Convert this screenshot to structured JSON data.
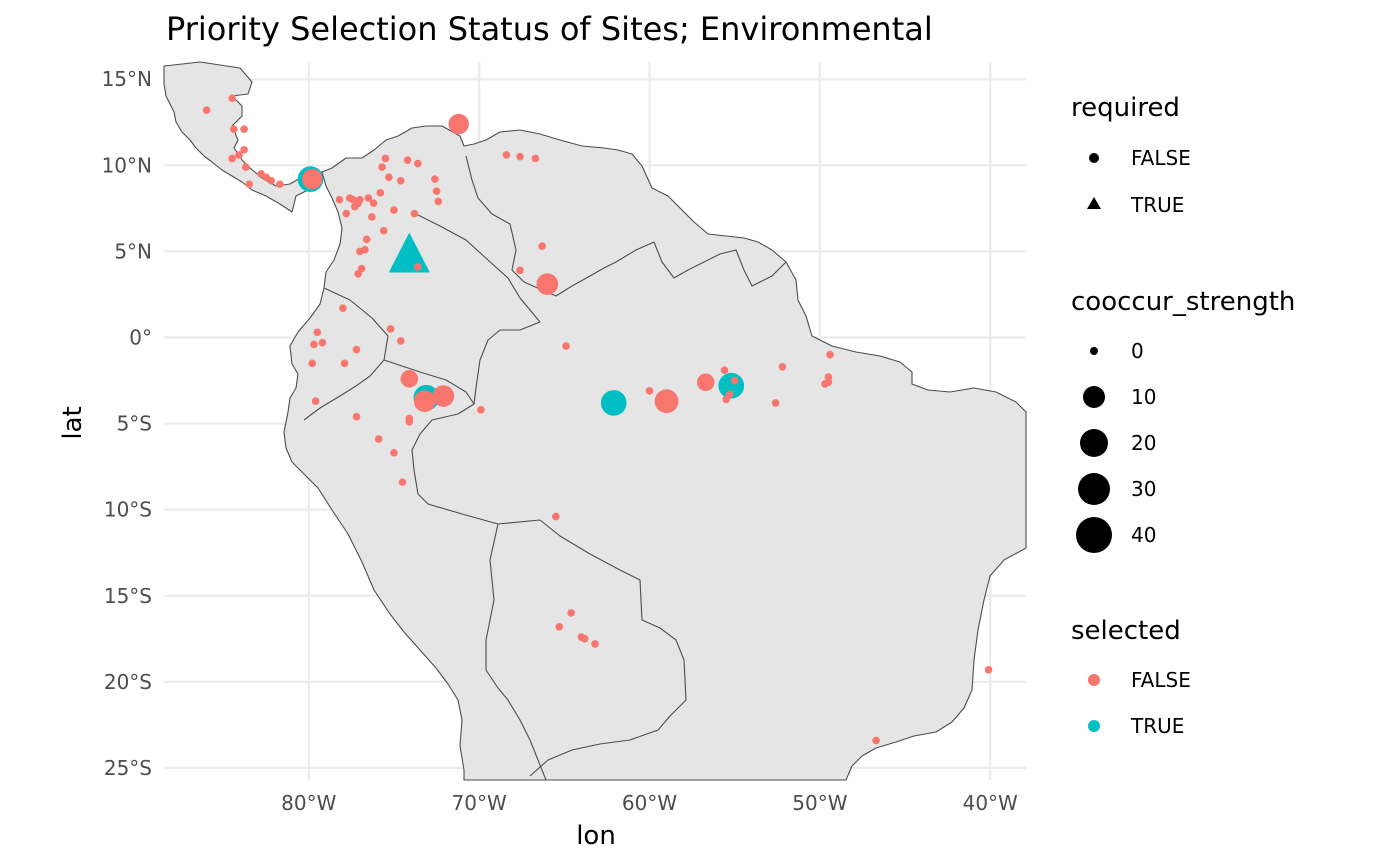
{
  "chart_data": {
    "type": "scatter",
    "title": "Priority Selection Status of Sites; Environmental",
    "xlabel": "lon",
    "ylabel": "lat",
    "xlim": [
      -88.5,
      -37.9
    ],
    "ylim": [
      -25.7,
      16.0
    ],
    "x_ticks": [
      {
        "value": -80,
        "label": "80°W"
      },
      {
        "value": -70,
        "label": "70°W"
      },
      {
        "value": -60,
        "label": "60°W"
      },
      {
        "value": -50,
        "label": "50°W"
      },
      {
        "value": -40,
        "label": "40°W"
      }
    ],
    "y_ticks": [
      {
        "value": 15,
        "label": "15°N"
      },
      {
        "value": 10,
        "label": "10°N"
      },
      {
        "value": 5,
        "label": "5°N"
      },
      {
        "value": 0,
        "label": "0°"
      },
      {
        "value": -5,
        "label": "5°S"
      },
      {
        "value": -10,
        "label": "10°S"
      },
      {
        "value": -15,
        "label": "15°S"
      },
      {
        "value": -20,
        "label": "20°S"
      },
      {
        "value": -25,
        "label": "25°S"
      }
    ],
    "grid": true,
    "basemap": "country boundaries, light grey fill",
    "colors": {
      "selected_false": "#F8766D",
      "selected_true": "#00BFC4"
    },
    "legends": {
      "placement": "right",
      "required": {
        "title": "required",
        "entries": [
          {
            "label": "FALSE",
            "shape": "circle"
          },
          {
            "label": "TRUE",
            "shape": "triangle"
          }
        ]
      },
      "cooccur_strength": {
        "title": "cooccur_strength",
        "entries": [
          {
            "label": "0",
            "value": 0
          },
          {
            "label": "10",
            "value": 10
          },
          {
            "label": "20",
            "value": 20
          },
          {
            "label": "30",
            "value": 30
          },
          {
            "label": "40",
            "value": 40
          }
        ]
      },
      "selected": {
        "title": "selected",
        "entries": [
          {
            "label": "FALSE",
            "color": "#F8766D"
          },
          {
            "label": "TRUE",
            "color": "#00BFC4"
          }
        ]
      }
    },
    "points": [
      {
        "lon": -86.0,
        "lat": 13.2,
        "cooccur_strength": 0,
        "selected": false,
        "required": false
      },
      {
        "lon": -84.5,
        "lat": 13.9,
        "cooccur_strength": 0,
        "selected": false,
        "required": false
      },
      {
        "lon": -84.4,
        "lat": 12.1,
        "cooccur_strength": 0,
        "selected": false,
        "required": false
      },
      {
        "lon": -83.8,
        "lat": 12.1,
        "cooccur_strength": 0,
        "selected": false,
        "required": false
      },
      {
        "lon": -84.5,
        "lat": 10.4,
        "cooccur_strength": 0,
        "selected": false,
        "required": false
      },
      {
        "lon": -84.1,
        "lat": 10.6,
        "cooccur_strength": 0,
        "selected": false,
        "required": false
      },
      {
        "lon": -83.8,
        "lat": 10.9,
        "cooccur_strength": 0,
        "selected": false,
        "required": false
      },
      {
        "lon": -83.7,
        "lat": 9.9,
        "cooccur_strength": 0,
        "selected": false,
        "required": false
      },
      {
        "lon": -83.5,
        "lat": 8.9,
        "cooccur_strength": 0,
        "selected": false,
        "required": false
      },
      {
        "lon": -82.8,
        "lat": 9.5,
        "cooccur_strength": 0,
        "selected": false,
        "required": false
      },
      {
        "lon": -82.5,
        "lat": 9.3,
        "cooccur_strength": 0,
        "selected": false,
        "required": false
      },
      {
        "lon": -82.2,
        "lat": 9.1,
        "cooccur_strength": 0,
        "selected": false,
        "required": false
      },
      {
        "lon": -81.7,
        "lat": 8.9,
        "cooccur_strength": 0,
        "selected": false,
        "required": false
      },
      {
        "lon": -79.9,
        "lat": 9.2,
        "cooccur_strength": 10,
        "selected": true,
        "required": false
      },
      {
        "lon": -79.8,
        "lat": 9.2,
        "cooccur_strength": 5,
        "selected": false,
        "required": false
      },
      {
        "lon": -71.2,
        "lat": 12.4,
        "cooccur_strength": 5,
        "selected": false,
        "required": false
      },
      {
        "lon": -75.5,
        "lat": 10.4,
        "cooccur_strength": 0,
        "selected": false,
        "required": false
      },
      {
        "lon": -74.2,
        "lat": 10.3,
        "cooccur_strength": 0,
        "selected": false,
        "required": false
      },
      {
        "lon": -73.6,
        "lat": 10.1,
        "cooccur_strength": 0,
        "selected": false,
        "required": false
      },
      {
        "lon": -75.7,
        "lat": 9.9,
        "cooccur_strength": 0,
        "selected": false,
        "required": false
      },
      {
        "lon": -75.3,
        "lat": 9.3,
        "cooccur_strength": 0,
        "selected": false,
        "required": false
      },
      {
        "lon": -74.6,
        "lat": 9.1,
        "cooccur_strength": 0,
        "selected": false,
        "required": false
      },
      {
        "lon": -72.6,
        "lat": 9.2,
        "cooccur_strength": 0,
        "selected": false,
        "required": false
      },
      {
        "lon": -72.5,
        "lat": 8.5,
        "cooccur_strength": 0,
        "selected": false,
        "required": false
      },
      {
        "lon": -72.4,
        "lat": 7.9,
        "cooccur_strength": 0,
        "selected": false,
        "required": false
      },
      {
        "lon": -75.8,
        "lat": 8.4,
        "cooccur_strength": 0,
        "selected": false,
        "required": false
      },
      {
        "lon": -76.5,
        "lat": 8.1,
        "cooccur_strength": 0,
        "selected": false,
        "required": false
      },
      {
        "lon": -77.0,
        "lat": 8.0,
        "cooccur_strength": 0,
        "selected": false,
        "required": false
      },
      {
        "lon": -77.4,
        "lat": 8.0,
        "cooccur_strength": 0,
        "selected": false,
        "required": false
      },
      {
        "lon": -77.1,
        "lat": 7.8,
        "cooccur_strength": 0,
        "selected": false,
        "required": false
      },
      {
        "lon": -77.6,
        "lat": 8.1,
        "cooccur_strength": 0,
        "selected": false,
        "required": false
      },
      {
        "lon": -78.2,
        "lat": 8.0,
        "cooccur_strength": 0,
        "selected": false,
        "required": false
      },
      {
        "lon": -77.3,
        "lat": 7.6,
        "cooccur_strength": 0,
        "selected": false,
        "required": false
      },
      {
        "lon": -77.8,
        "lat": 7.2,
        "cooccur_strength": 0,
        "selected": false,
        "required": false
      },
      {
        "lon": -76.2,
        "lat": 7.8,
        "cooccur_strength": 0,
        "selected": false,
        "required": false
      },
      {
        "lon": -76.3,
        "lat": 7.0,
        "cooccur_strength": 0,
        "selected": false,
        "required": false
      },
      {
        "lon": -75.0,
        "lat": 7.4,
        "cooccur_strength": 0,
        "selected": false,
        "required": false
      },
      {
        "lon": -73.8,
        "lat": 7.2,
        "cooccur_strength": 0,
        "selected": false,
        "required": false
      },
      {
        "lon": -75.6,
        "lat": 6.2,
        "cooccur_strength": 0,
        "selected": false,
        "required": false
      },
      {
        "lon": -76.6,
        "lat": 5.7,
        "cooccur_strength": 0,
        "selected": false,
        "required": false
      },
      {
        "lon": -76.7,
        "lat": 5.1,
        "cooccur_strength": 0,
        "selected": false,
        "required": false
      },
      {
        "lon": -77.0,
        "lat": 5.0,
        "cooccur_strength": 0,
        "selected": false,
        "required": false
      },
      {
        "lon": -74.1,
        "lat": 4.7,
        "cooccur_strength": 20,
        "selected": true,
        "required": true
      },
      {
        "lon": -76.9,
        "lat": 4.0,
        "cooccur_strength": 0,
        "selected": false,
        "required": false
      },
      {
        "lon": -77.1,
        "lat": 3.7,
        "cooccur_strength": 0,
        "selected": false,
        "required": false
      },
      {
        "lon": -73.6,
        "lat": 4.1,
        "cooccur_strength": 0,
        "selected": false,
        "required": false
      },
      {
        "lon": -78.0,
        "lat": 1.7,
        "cooccur_strength": 0,
        "selected": false,
        "required": false
      },
      {
        "lon": -79.5,
        "lat": 0.3,
        "cooccur_strength": 0,
        "selected": false,
        "required": false
      },
      {
        "lon": -79.2,
        "lat": -0.3,
        "cooccur_strength": 0,
        "selected": false,
        "required": false
      },
      {
        "lon": -79.7,
        "lat": -0.4,
        "cooccur_strength": 0,
        "selected": false,
        "required": false
      },
      {
        "lon": -77.2,
        "lat": -0.7,
        "cooccur_strength": 0,
        "selected": false,
        "required": false
      },
      {
        "lon": -79.8,
        "lat": -1.5,
        "cooccur_strength": 0,
        "selected": false,
        "required": false
      },
      {
        "lon": -77.9,
        "lat": -1.5,
        "cooccur_strength": 0,
        "selected": false,
        "required": false
      },
      {
        "lon": -75.2,
        "lat": 0.5,
        "cooccur_strength": 0,
        "selected": false,
        "required": false
      },
      {
        "lon": -74.6,
        "lat": -0.2,
        "cooccur_strength": 0,
        "selected": false,
        "required": false
      },
      {
        "lon": -74.1,
        "lat": -2.4,
        "cooccur_strength": 3,
        "selected": false,
        "required": false
      },
      {
        "lon": -79.6,
        "lat": -3.7,
        "cooccur_strength": 0,
        "selected": false,
        "required": false
      },
      {
        "lon": -77.2,
        "lat": -4.6,
        "cooccur_strength": 0,
        "selected": false,
        "required": false
      },
      {
        "lon": -73.1,
        "lat": -3.5,
        "cooccur_strength": 10,
        "selected": true,
        "required": false
      },
      {
        "lon": -73.2,
        "lat": -3.7,
        "cooccur_strength": 6,
        "selected": false,
        "required": false
      },
      {
        "lon": -72.1,
        "lat": -3.4,
        "cooccur_strength": 6,
        "selected": false,
        "required": false
      },
      {
        "lon": -69.9,
        "lat": -4.2,
        "cooccur_strength": 0,
        "selected": false,
        "required": false
      },
      {
        "lon": -74.1,
        "lat": -4.7,
        "cooccur_strength": 0,
        "selected": false,
        "required": false
      },
      {
        "lon": -74.1,
        "lat": -4.9,
        "cooccur_strength": 0,
        "selected": false,
        "required": false
      },
      {
        "lon": -75.9,
        "lat": -5.9,
        "cooccur_strength": 0,
        "selected": false,
        "required": false
      },
      {
        "lon": -75.0,
        "lat": -6.7,
        "cooccur_strength": 0,
        "selected": false,
        "required": false
      },
      {
        "lon": -74.5,
        "lat": -8.4,
        "cooccur_strength": 0,
        "selected": false,
        "required": false
      },
      {
        "lon": -67.6,
        "lat": 10.5,
        "cooccur_strength": 0,
        "selected": false,
        "required": false
      },
      {
        "lon": -66.7,
        "lat": 10.4,
        "cooccur_strength": 0,
        "selected": false,
        "required": false
      },
      {
        "lon": -68.4,
        "lat": 10.6,
        "cooccur_strength": 0,
        "selected": false,
        "required": false
      },
      {
        "lon": -66.3,
        "lat": 5.3,
        "cooccur_strength": 0,
        "selected": false,
        "required": false
      },
      {
        "lon": -67.6,
        "lat": 3.9,
        "cooccur_strength": 0,
        "selected": false,
        "required": false
      },
      {
        "lon": -66.0,
        "lat": 3.1,
        "cooccur_strength": 6,
        "selected": false,
        "required": false
      },
      {
        "lon": -64.9,
        "lat": -0.5,
        "cooccur_strength": 0,
        "selected": false,
        "required": false
      },
      {
        "lon": -62.1,
        "lat": -3.8,
        "cooccur_strength": 10,
        "selected": true,
        "required": false
      },
      {
        "lon": -60.0,
        "lat": -3.1,
        "cooccur_strength": 0,
        "selected": false,
        "required": false
      },
      {
        "lon": -59.0,
        "lat": -3.7,
        "cooccur_strength": 8,
        "selected": false,
        "required": false
      },
      {
        "lon": -56.7,
        "lat": -2.6,
        "cooccur_strength": 3,
        "selected": false,
        "required": false
      },
      {
        "lon": -55.6,
        "lat": -1.9,
        "cooccur_strength": 0,
        "selected": false,
        "required": false
      },
      {
        "lon": -55.2,
        "lat": -2.8,
        "cooccur_strength": 10,
        "selected": true,
        "required": false
      },
      {
        "lon": -55.0,
        "lat": -2.5,
        "cooccur_strength": 0,
        "selected": false,
        "required": false
      },
      {
        "lon": -55.5,
        "lat": -3.6,
        "cooccur_strength": 0,
        "selected": false,
        "required": false
      },
      {
        "lon": -55.3,
        "lat": -3.3,
        "cooccur_strength": 0,
        "selected": false,
        "required": false
      },
      {
        "lon": -52.6,
        "lat": -3.8,
        "cooccur_strength": 0,
        "selected": false,
        "required": false
      },
      {
        "lon": -52.2,
        "lat": -1.7,
        "cooccur_strength": 0,
        "selected": false,
        "required": false
      },
      {
        "lon": -49.4,
        "lat": -1.0,
        "cooccur_strength": 0,
        "selected": false,
        "required": false
      },
      {
        "lon": -49.5,
        "lat": -2.3,
        "cooccur_strength": 0,
        "selected": false,
        "required": false
      },
      {
        "lon": -49.5,
        "lat": -2.6,
        "cooccur_strength": 0,
        "selected": false,
        "required": false
      },
      {
        "lon": -49.7,
        "lat": -2.7,
        "cooccur_strength": 0,
        "selected": false,
        "required": false
      },
      {
        "lon": -65.5,
        "lat": -10.4,
        "cooccur_strength": 0,
        "selected": false,
        "required": false
      },
      {
        "lon": -64.6,
        "lat": -16.0,
        "cooccur_strength": 0,
        "selected": false,
        "required": false
      },
      {
        "lon": -65.3,
        "lat": -16.8,
        "cooccur_strength": 0,
        "selected": false,
        "required": false
      },
      {
        "lon": -64.0,
        "lat": -17.4,
        "cooccur_strength": 0,
        "selected": false,
        "required": false
      },
      {
        "lon": -63.8,
        "lat": -17.5,
        "cooccur_strength": 0,
        "selected": false,
        "required": false
      },
      {
        "lon": -63.2,
        "lat": -17.8,
        "cooccur_strength": 0,
        "selected": false,
        "required": false
      },
      {
        "lon": -40.1,
        "lat": -19.3,
        "cooccur_strength": 0,
        "selected": false,
        "required": false
      },
      {
        "lon": -46.7,
        "lat": -23.4,
        "cooccur_strength": 0,
        "selected": false,
        "required": false
      }
    ]
  }
}
